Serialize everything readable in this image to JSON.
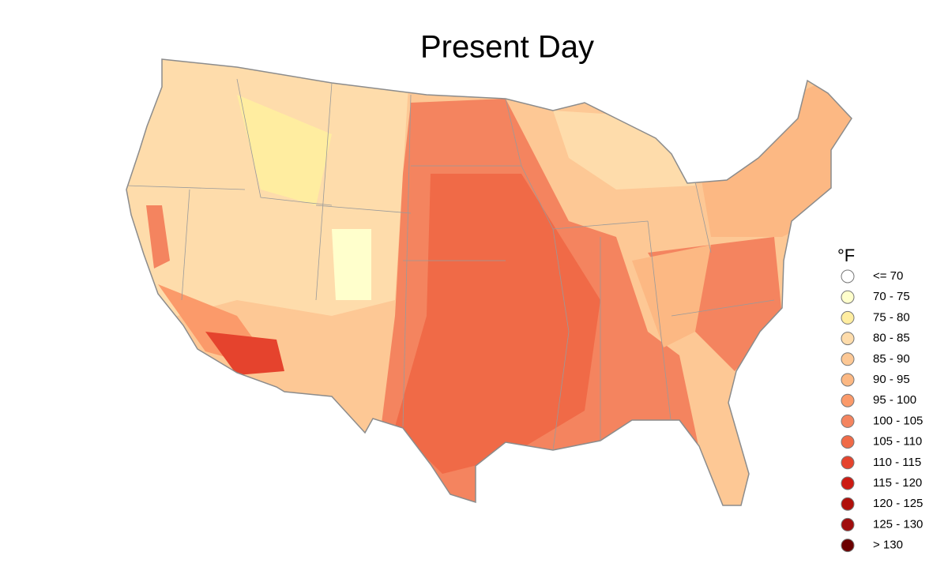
{
  "title": "Present Day",
  "legend": {
    "title": "°F",
    "items": [
      {
        "label": "<= 70",
        "color": "#ffffff"
      },
      {
        "label": "70 - 75",
        "color": "#ffffcc"
      },
      {
        "label": "75 - 80",
        "color": "#ffeda0"
      },
      {
        "label": "80 - 85",
        "color": "#fedcab"
      },
      {
        "label": "85 - 90",
        "color": "#fdc895"
      },
      {
        "label": "90 - 95",
        "color": "#fcb883"
      },
      {
        "label": "95 - 100",
        "color": "#fb9a6a"
      },
      {
        "label": "100 - 105",
        "color": "#f4845f"
      },
      {
        "label": "105 - 110",
        "color": "#f06a47"
      },
      {
        "label": "110 - 115",
        "color": "#e5432d"
      },
      {
        "label": "115 - 120",
        "color": "#cc1a12"
      },
      {
        "label": "120 - 125",
        "color": "#b0100b"
      },
      {
        "label": "125 - 130",
        "color": "#a00d0d"
      },
      {
        "label": "> 130",
        "color": "#6b0000"
      }
    ]
  }
}
